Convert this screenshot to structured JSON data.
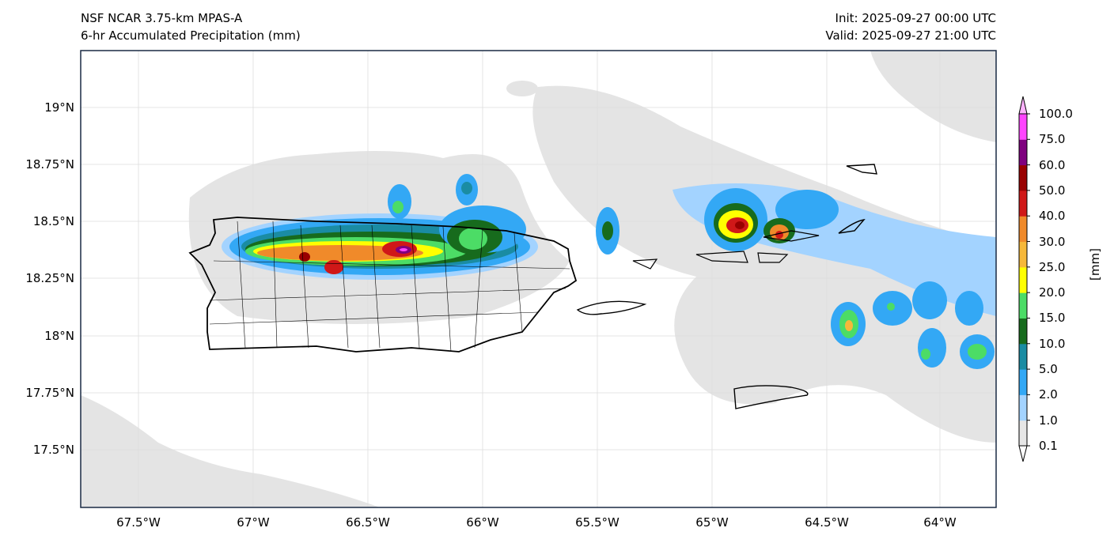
{
  "header": {
    "model": "NSF NCAR 3.75-km MPAS-A",
    "field": "6-hr Accumulated Precipitation (mm)",
    "init": "Init: 2025-09-27 00:00 UTC",
    "valid": "Valid: 2025-09-27 21:00 UTC"
  },
  "axes": {
    "lat_ticks": [
      "19°N",
      "18.75°N",
      "18.5°N",
      "18.25°N",
      "18°N",
      "17.75°N",
      "17.5°N"
    ],
    "lon_ticks": [
      "67.5°W",
      "67°W",
      "66.5°W",
      "66°W",
      "65.5°W",
      "65°W",
      "64.5°W",
      "64°W"
    ],
    "extent": {
      "lon": [
        -67.75,
        -63.75
      ],
      "lat": [
        17.25,
        19.25
      ]
    }
  },
  "colorbar": {
    "label": "[mm]",
    "ticks": [
      "100.0",
      "75.0",
      "60.0",
      "50.0",
      "40.0",
      "30.0",
      "25.0",
      "20.0",
      "15.0",
      "10.0",
      "5.0",
      "2.0",
      "1.0",
      "0.1"
    ],
    "colors": [
      "#e6e6e6",
      "#a3d3ff",
      "#33a8f5",
      "#1a8ca3",
      "#176b1d",
      "#4cdc66",
      "#ffff00",
      "#f6b83a",
      "#f08a2a",
      "#d01818",
      "#990000",
      "#7f007f",
      "#ff44ff"
    ],
    "over_color": "#ffb3ff",
    "under_color": "#ffffff"
  }
}
